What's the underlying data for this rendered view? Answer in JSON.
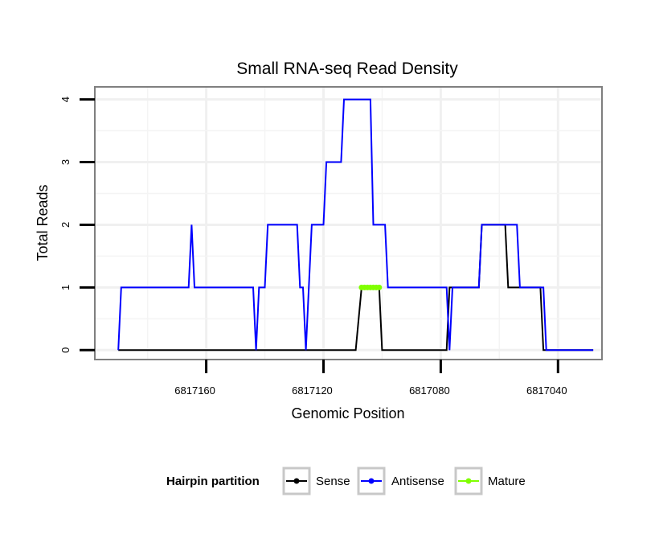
{
  "chart_data": {
    "type": "line",
    "title": "Small RNA-seq Read Density",
    "xlabel": "Genomic Position",
    "ylabel": "Total Reads",
    "x_reversed": true,
    "xlim": [
      6817198,
      6817025
    ],
    "ylim": [
      -0.15,
      4.2
    ],
    "xticks": [
      6817160,
      6817120,
      6817080,
      6817040
    ],
    "xtick_labels": [
      "6817160",
      "6817120",
      "6817080",
      "6817040"
    ],
    "yticks": [
      0,
      1,
      2,
      3,
      4
    ],
    "ytick_labels": [
      "0",
      "1",
      "2",
      "3",
      "4"
    ],
    "grid": true,
    "legend": {
      "title": "Hairpin partition",
      "placement": "bottom",
      "entries": [
        "Sense",
        "Antisense",
        "Mature"
      ]
    },
    "series": [
      {
        "name": "Sense",
        "color": "#000000",
        "points": [
          [
            6817190,
            0
          ],
          [
            6817110,
            0
          ],
          [
            6817109,
            0
          ],
          [
            6817107,
            1
          ],
          [
            6817106,
            1
          ],
          [
            6817101,
            1
          ],
          [
            6817100,
            0
          ],
          [
            6817079,
            0
          ],
          [
            6817078,
            0
          ],
          [
            6817077,
            1
          ],
          [
            6817068,
            1
          ],
          [
            6817067,
            1
          ],
          [
            6817066,
            2
          ],
          [
            6817058,
            2
          ],
          [
            6817057,
            1
          ],
          [
            6817046,
            1
          ],
          [
            6817045,
            0
          ],
          [
            6817028,
            0
          ]
        ]
      },
      {
        "name": "Antisense",
        "color": "#0000ff",
        "points": [
          [
            6817190,
            0
          ],
          [
            6817189,
            1
          ],
          [
            6817166,
            1
          ],
          [
            6817165,
            2
          ],
          [
            6817164,
            1
          ],
          [
            6817144,
            1
          ],
          [
            6817143,
            0
          ],
          [
            6817142,
            1
          ],
          [
            6817140,
            1
          ],
          [
            6817139,
            2
          ],
          [
            6817129,
            2
          ],
          [
            6817128,
            1
          ],
          [
            6817127,
            1
          ],
          [
            6817126,
            0
          ],
          [
            6817124,
            2
          ],
          [
            6817120,
            2
          ],
          [
            6817119,
            3
          ],
          [
            6817114,
            3
          ],
          [
            6817113,
            4
          ],
          [
            6817104,
            4
          ],
          [
            6817103,
            2
          ],
          [
            6817099,
            2
          ],
          [
            6817098,
            1
          ],
          [
            6817078,
            1
          ],
          [
            6817077,
            0
          ],
          [
            6817076,
            1
          ],
          [
            6817067,
            1
          ],
          [
            6817066,
            2
          ],
          [
            6817054,
            2
          ],
          [
            6817053,
            1
          ],
          [
            6817045,
            1
          ],
          [
            6817044,
            0
          ],
          [
            6817028,
            0
          ]
        ]
      },
      {
        "name": "Mature",
        "color": "#80ff00",
        "points": [
          [
            6817107,
            1
          ],
          [
            6817106,
            1
          ],
          [
            6817105,
            1
          ],
          [
            6817104,
            1
          ],
          [
            6817103,
            1
          ],
          [
            6817102,
            1
          ],
          [
            6817101,
            1
          ]
        ]
      }
    ]
  }
}
